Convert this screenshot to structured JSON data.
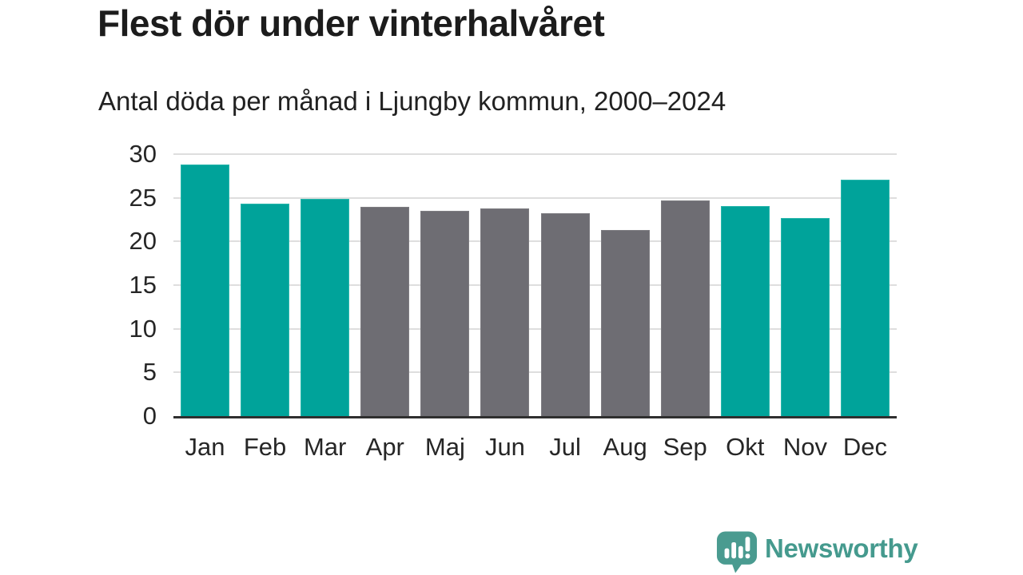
{
  "chart_data": {
    "type": "bar",
    "title": "Flest dör under vinterhalvåret",
    "subtitle": "Antal döda per månad i Ljungby kommun, 2000–2024",
    "categories": [
      "Jan",
      "Feb",
      "Mar",
      "Apr",
      "Maj",
      "Jun",
      "Jul",
      "Aug",
      "Sep",
      "Okt",
      "Nov",
      "Dec"
    ],
    "values": [
      28.8,
      24.3,
      24.9,
      24.0,
      23.5,
      23.8,
      23.2,
      21.3,
      24.7,
      24.1,
      22.7,
      27.1
    ],
    "bar_color_keys": [
      "teal",
      "teal",
      "teal",
      "gray",
      "gray",
      "gray",
      "gray",
      "gray",
      "gray",
      "teal",
      "teal",
      "teal"
    ],
    "ylim": [
      0,
      30
    ],
    "yticks": [
      0,
      5,
      10,
      15,
      20,
      25,
      30
    ],
    "grid": true,
    "legend_position": "none",
    "xlabel": "",
    "ylabel": "",
    "colors": {
      "teal": "#00a39a",
      "teal_edge": "#2bb7ad",
      "gray": "#6e6d73",
      "gray_edge": "#7e7d82",
      "gridline": "#dedede",
      "axis_line": "#2f2f2f",
      "text": "#262626"
    }
  },
  "footer": {
    "brand": "Newsworthy",
    "brand_color": "#459a8e",
    "icon": "newsworthy-logo-icon"
  }
}
